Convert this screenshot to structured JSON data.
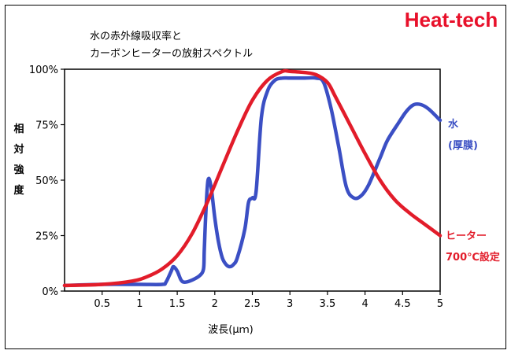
{
  "brand": "Heat-tech",
  "chart_data": {
    "type": "line",
    "title_lines": [
      "水の赤外線吸収率と",
      "カーボンヒーターの放射スペクトル"
    ],
    "ylabel_chars": [
      "相",
      "対",
      "強",
      "度"
    ],
    "xlabel": "波長(μｍ)",
    "xlim": [
      0,
      5
    ],
    "ylim": [
      0,
      100
    ],
    "x_ticks": [
      {
        "value": 0.5,
        "label": "0.5"
      },
      {
        "value": 1,
        "label": "1"
      },
      {
        "value": 1.5,
        "label": "1.5"
      },
      {
        "value": 2,
        "label": "2"
      },
      {
        "value": 2.5,
        "label": "2.5"
      },
      {
        "value": 3,
        "label": "3"
      },
      {
        "value": 3.5,
        "label": "3.5"
      },
      {
        "value": 4,
        "label": "4"
      },
      {
        "value": 4.5,
        "label": "4.5"
      },
      {
        "value": 5,
        "label": "5"
      }
    ],
    "y_ticks": [
      {
        "value": 0,
        "label": "0%"
      },
      {
        "value": 25,
        "label": "25%"
      },
      {
        "value": 50,
        "label": "50%"
      },
      {
        "value": 75,
        "label": "75%"
      },
      {
        "value": 100,
        "label": "100%"
      }
    ],
    "series": [
      {
        "name_lines": [
          "水",
          "(厚膜)"
        ],
        "color": "#3b4fc4",
        "points": [
          [
            0.0,
            2.5
          ],
          [
            0.5,
            3
          ],
          [
            1.0,
            3
          ],
          [
            1.3,
            3
          ],
          [
            1.35,
            4
          ],
          [
            1.42,
            9
          ],
          [
            1.45,
            11
          ],
          [
            1.5,
            9
          ],
          [
            1.55,
            5
          ],
          [
            1.6,
            4
          ],
          [
            1.7,
            5
          ],
          [
            1.8,
            7
          ],
          [
            1.85,
            10
          ],
          [
            1.86,
            18
          ],
          [
            1.88,
            35
          ],
          [
            1.91,
            50
          ],
          [
            1.95,
            47
          ],
          [
            2.0,
            33
          ],
          [
            2.05,
            22
          ],
          [
            2.1,
            15
          ],
          [
            2.15,
            12
          ],
          [
            2.2,
            11
          ],
          [
            2.25,
            12
          ],
          [
            2.3,
            15
          ],
          [
            2.4,
            28
          ],
          [
            2.45,
            40
          ],
          [
            2.5,
            42
          ],
          [
            2.55,
            45
          ],
          [
            2.62,
            78
          ],
          [
            2.7,
            90
          ],
          [
            2.8,
            95
          ],
          [
            2.9,
            96
          ],
          [
            3.0,
            96
          ],
          [
            3.2,
            96
          ],
          [
            3.35,
            96
          ],
          [
            3.45,
            94
          ],
          [
            3.55,
            82
          ],
          [
            3.65,
            65
          ],
          [
            3.75,
            47
          ],
          [
            3.85,
            42
          ],
          [
            3.95,
            43
          ],
          [
            4.05,
            48
          ],
          [
            4.2,
            60
          ],
          [
            4.3,
            68
          ],
          [
            4.45,
            76
          ],
          [
            4.55,
            81
          ],
          [
            4.65,
            84
          ],
          [
            4.75,
            84
          ],
          [
            4.85,
            82
          ],
          [
            5.0,
            77
          ]
        ]
      },
      {
        "name_lines": [
          "ヒーター",
          "700℃設定"
        ],
        "color": "#e21c2a",
        "points": [
          [
            0.0,
            2.5
          ],
          [
            0.5,
            3
          ],
          [
            0.9,
            4.5
          ],
          [
            1.1,
            6.5
          ],
          [
            1.3,
            10
          ],
          [
            1.5,
            16
          ],
          [
            1.7,
            26
          ],
          [
            1.9,
            40
          ],
          [
            2.1,
            56
          ],
          [
            2.3,
            72
          ],
          [
            2.5,
            86
          ],
          [
            2.7,
            95
          ],
          [
            2.9,
            99
          ],
          [
            3.0,
            99
          ],
          [
            3.2,
            98.5
          ],
          [
            3.35,
            97.5
          ],
          [
            3.5,
            94
          ],
          [
            3.6,
            88
          ],
          [
            3.8,
            75
          ],
          [
            4.0,
            62
          ],
          [
            4.2,
            50
          ],
          [
            4.4,
            41
          ],
          [
            4.6,
            35
          ],
          [
            4.8,
            30
          ],
          [
            5.0,
            25
          ]
        ]
      }
    ]
  }
}
